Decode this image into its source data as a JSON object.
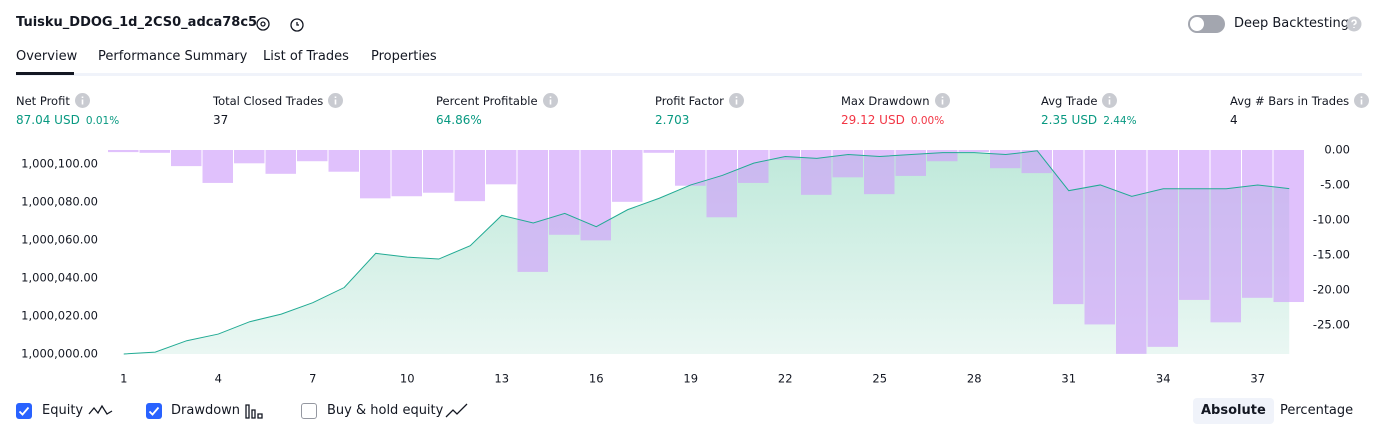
{
  "header": {
    "title": "Tuisku_DDOG_1d_2CS0_adca78c5",
    "toggle_label": "Deep Backtesting"
  },
  "tabs": {
    "items": [
      "Overview",
      "Performance Summary",
      "List of Trades",
      "Properties"
    ],
    "active": 0
  },
  "metrics": [
    {
      "label": "Net Profit",
      "value": "87.04 USD",
      "sub": "0.01%",
      "tone": "up"
    },
    {
      "label": "Total Closed Trades",
      "value": "37",
      "tone": "plain"
    },
    {
      "label": "Percent Profitable",
      "value": "64.86%",
      "tone": "up"
    },
    {
      "label": "Profit Factor",
      "value": "2.703",
      "tone": "up"
    },
    {
      "label": "Max Drawdown",
      "value": "29.12 USD",
      "sub": "0.00%",
      "tone": "down"
    },
    {
      "label": "Avg Trade",
      "value": "2.35 USD",
      "sub": "2.44%",
      "tone": "up"
    },
    {
      "label": "Avg # Bars in Trades",
      "value": "4",
      "tone": "plain"
    }
  ],
  "chart_data": {
    "type": "combo",
    "x": [
      1,
      2,
      3,
      4,
      5,
      6,
      7,
      8,
      9,
      10,
      11,
      12,
      13,
      14,
      15,
      16,
      17,
      18,
      19,
      20,
      21,
      22,
      23,
      24,
      25,
      26,
      27,
      28,
      29,
      30,
      31,
      32,
      33,
      34,
      35,
      36,
      37,
      38
    ],
    "xlim": [
      0.5,
      38.5
    ],
    "xticks": [
      1,
      4,
      7,
      10,
      13,
      16,
      19,
      22,
      25,
      28,
      31,
      34,
      37
    ],
    "ylim": [
      1000000,
      1000107.4
    ],
    "yticks": [
      {
        "value": 1000000,
        "label": "1,000,000.00"
      },
      {
        "value": 1000020,
        "label": "1,000,020.00"
      },
      {
        "value": 1000040,
        "label": "1,000,040.00"
      },
      {
        "value": 1000060,
        "label": "1,000,060.00"
      },
      {
        "value": 1000080,
        "label": "1,000,080.00"
      },
      {
        "value": 1000100,
        "label": "1,000,100.00"
      }
    ],
    "y2lim": [
      -29.12,
      0
    ],
    "y2ticks": [
      {
        "value": 0,
        "label": "0.00"
      },
      {
        "value": -5,
        "label": "-5.00"
      },
      {
        "value": -10,
        "label": "-10.00"
      },
      {
        "value": -15,
        "label": "-15.00"
      },
      {
        "value": -20,
        "label": "-20.00"
      },
      {
        "value": -25,
        "label": "-25.00"
      }
    ],
    "series": [
      {
        "name": "Equity",
        "type": "area",
        "color": "#22ab94",
        "checked": true,
        "values": [
          1000000,
          1000001,
          1000007,
          1000010.5,
          1000017,
          1000021,
          1000027,
          1000035,
          1000053,
          1000051,
          1000050,
          1000057,
          1000073,
          1000069,
          1000074,
          1000067,
          1000076,
          1000082,
          1000089,
          1000094,
          1000100.5,
          1000104,
          1000103,
          1000105,
          1000104,
          1000105,
          1000106,
          1000106,
          1000105,
          1000107,
          1000086,
          1000089,
          1000083,
          1000087,
          1000087,
          1000087,
          1000089,
          1000087.04
        ]
      },
      {
        "name": "Drawdown",
        "type": "bar",
        "axis": "y2",
        "color": "#cf9ffb",
        "checked": true,
        "values": [
          -0.3,
          -0.4,
          -2.3,
          -4.7,
          -1.9,
          -3.4,
          -1.6,
          -3.1,
          -6.9,
          -6.6,
          -6.1,
          -7.3,
          -4.9,
          -17.4,
          -12.1,
          -12.9,
          -7.4,
          -0.4,
          -5.1,
          -9.6,
          -4.7,
          -1.4,
          -6.4,
          -3.9,
          -6.3,
          -3.7,
          -1.6,
          -0.3,
          -2.6,
          -3.3,
          -22,
          -24.9,
          -29.1,
          -28.1,
          -21.4,
          -24.6,
          -21.1,
          -21.7
        ]
      }
    ]
  },
  "controls": {
    "buy_hold": {
      "label": "Buy & hold equity",
      "checked": false
    },
    "views": [
      "Absolute",
      "Percentage"
    ],
    "active_view": 0
  }
}
